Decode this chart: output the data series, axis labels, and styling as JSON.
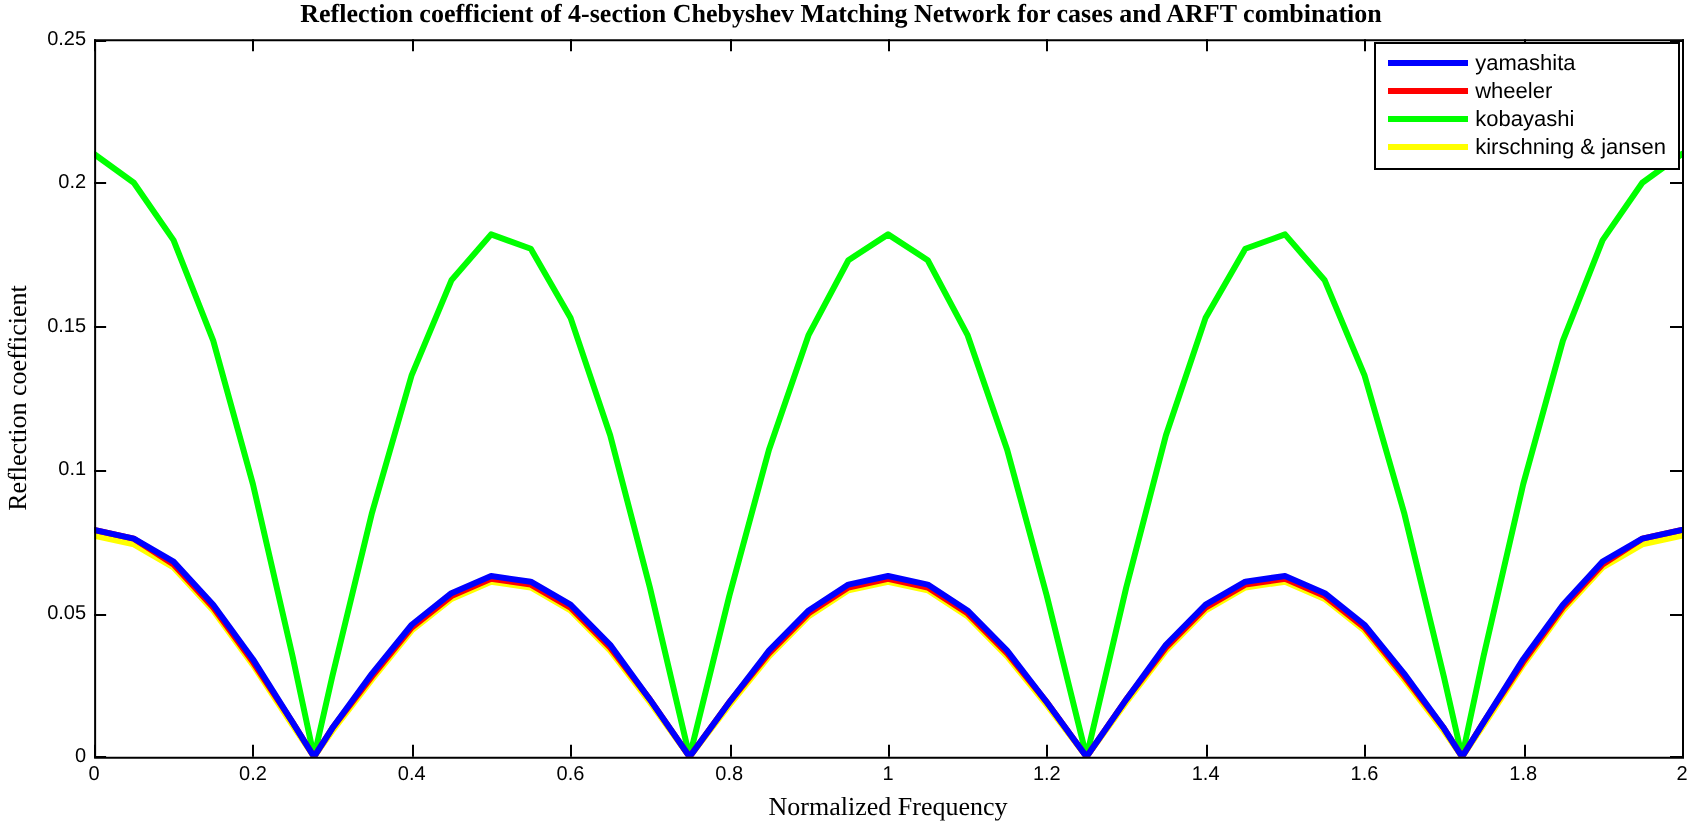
{
  "chart_data": {
    "type": "line",
    "title": "Reflection coefficient of 4-section Chebyshev Matching Network for cases and ARFT combination",
    "xlabel": "Normalized Frequency",
    "ylabel": "Reflection coefficient",
    "x": [
      0,
      0.05,
      0.1,
      0.15,
      0.2,
      0.25,
      0.277,
      0.3,
      0.35,
      0.4,
      0.45,
      0.5,
      0.55,
      0.6,
      0.65,
      0.7,
      0.75,
      0.8,
      0.85,
      0.9,
      0.95,
      1.0,
      1.05,
      1.1,
      1.15,
      1.2,
      1.25,
      1.3,
      1.35,
      1.4,
      1.45,
      1.5,
      1.55,
      1.6,
      1.65,
      1.7,
      1.723,
      1.75,
      1.8,
      1.85,
      1.9,
      1.95,
      2.0
    ],
    "series": [
      {
        "name": "yamashita",
        "color": "#0000ff",
        "values": [
          0.079,
          0.076,
          0.068,
          0.053,
          0.034,
          0.012,
          0,
          0.01,
          0.029,
          0.046,
          0.057,
          0.063,
          0.061,
          0.053,
          0.039,
          0.02,
          0,
          0.019,
          0.037,
          0.051,
          0.06,
          0.063,
          0.06,
          0.051,
          0.037,
          0.019,
          0,
          0.02,
          0.039,
          0.053,
          0.061,
          0.063,
          0.057,
          0.046,
          0.029,
          0.01,
          0,
          0.012,
          0.034,
          0.053,
          0.068,
          0.076,
          0.079
        ]
      },
      {
        "name": "wheeler",
        "color": "#ff0000",
        "values": [
          0.079,
          0.076,
          0.067,
          0.052,
          0.033,
          0.012,
          0,
          0.01,
          0.028,
          0.045,
          0.056,
          0.062,
          0.06,
          0.052,
          0.038,
          0.02,
          0,
          0.019,
          0.036,
          0.05,
          0.059,
          0.062,
          0.059,
          0.05,
          0.036,
          0.019,
          0,
          0.02,
          0.038,
          0.052,
          0.06,
          0.062,
          0.056,
          0.045,
          0.028,
          0.01,
          0,
          0.012,
          0.033,
          0.052,
          0.067,
          0.076,
          0.079
        ]
      },
      {
        "name": "kobayashi",
        "color": "#00ff00",
        "values": [
          0.21,
          0.2,
          0.18,
          0.145,
          0.095,
          0.035,
          0,
          0.028,
          0.085,
          0.133,
          0.166,
          0.182,
          0.177,
          0.153,
          0.112,
          0.059,
          0,
          0.056,
          0.107,
          0.147,
          0.173,
          0.182,
          0.173,
          0.147,
          0.107,
          0.056,
          0,
          0.059,
          0.112,
          0.153,
          0.177,
          0.182,
          0.166,
          0.133,
          0.085,
          0.028,
          0,
          0.035,
          0.095,
          0.145,
          0.18,
          0.2,
          0.21
        ]
      },
      {
        "name": "kirschning & jansen",
        "color": "#ffff00",
        "values": [
          0.077,
          0.074,
          0.066,
          0.051,
          0.032,
          0.011,
          0,
          0.009,
          0.027,
          0.044,
          0.055,
          0.061,
          0.059,
          0.051,
          0.037,
          0.019,
          0,
          0.018,
          0.035,
          0.049,
          0.058,
          0.061,
          0.058,
          0.049,
          0.035,
          0.018,
          0,
          0.019,
          0.037,
          0.051,
          0.059,
          0.061,
          0.055,
          0.044,
          0.027,
          0.009,
          0,
          0.011,
          0.032,
          0.051,
          0.066,
          0.074,
          0.077
        ]
      }
    ],
    "xlim": [
      0,
      2
    ],
    "xticks": [
      0,
      0.2,
      0.4,
      0.6,
      0.8,
      1,
      1.2,
      1.4,
      1.6,
      1.8,
      2
    ],
    "ylim": [
      0,
      0.25
    ],
    "yticks": [
      0,
      0.05,
      0.1,
      0.15,
      0.2,
      0.25
    ],
    "grid": false,
    "legend": "top right"
  }
}
